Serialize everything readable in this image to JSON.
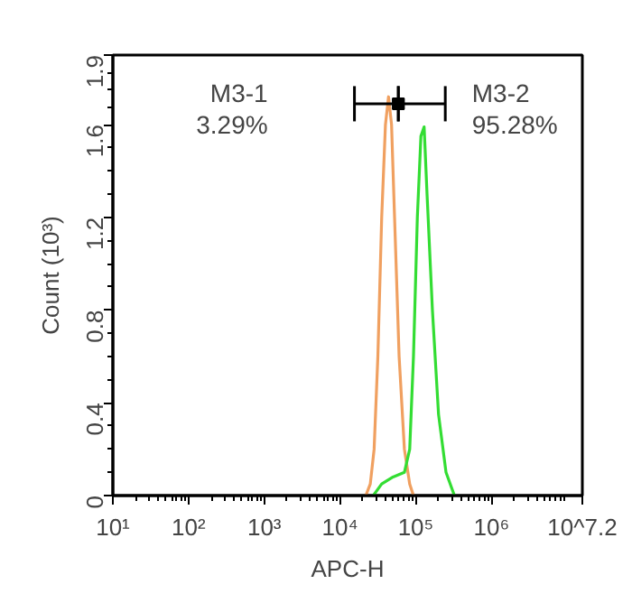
{
  "chart_data": {
    "type": "line",
    "xlabel": "APC-H",
    "ylabel": "Count (10³)",
    "log": "x",
    "xlim": [
      10,
      15848932
    ],
    "xticks": [
      {
        "value": 10,
        "label": "10¹"
      },
      {
        "value": 100,
        "label": "10²"
      },
      {
        "value": 1000,
        "label": "10³"
      },
      {
        "value": 10000,
        "label": "10⁴"
      },
      {
        "value": 100000,
        "label": "10⁵"
      },
      {
        "value": 1000000,
        "label": "10⁶"
      },
      {
        "value": 15848932,
        "label": "10^7.2"
      }
    ],
    "ylim": [
      0,
      1.9
    ],
    "yticks": [
      {
        "value": 0,
        "label": "0"
      },
      {
        "value": 0.4,
        "label": "0.4"
      },
      {
        "value": 0.8,
        "label": "0.8"
      },
      {
        "value": 1.2,
        "label": "1.2"
      },
      {
        "value": 1.6,
        "label": "1.6"
      },
      {
        "value": 1.9,
        "label": "1.9"
      }
    ],
    "grid": false,
    "marker": "none",
    "line_style": "solid",
    "series": [
      {
        "color": "#f0a060",
        "x": [
          21900,
          25100,
          28200,
          31600,
          35500,
          39800,
          43700,
          47900,
          52500,
          60300,
          70800,
          83200,
          93300
        ],
        "values": [
          0,
          0.05,
          0.2,
          0.6,
          1.2,
          1.6,
          1.72,
          1.6,
          1.2,
          0.6,
          0.2,
          0.05,
          0
        ]
      },
      {
        "color": "#33dd33",
        "x": [
          27500,
          35500,
          50100,
          70800,
          83200,
          93300,
          105000,
          117000,
          129000,
          141000,
          166000,
          200000,
          251000,
          324000
        ],
        "values": [
          0,
          0.05,
          0.08,
          0.1,
          0.2,
          0.6,
          1.2,
          1.55,
          1.59,
          1.3,
          0.8,
          0.35,
          0.1,
          0
        ]
      },
      {
        "type": "scatter",
        "color": "#000000",
        "marker": "square",
        "x": [
          58900,
          58900
        ],
        "values": [
          1.69,
          1.69
        ],
        "xerrors": [
          [
            15500,
            58900
          ],
          [
            58900,
            245500
          ]
        ]
      }
    ],
    "annotations": [
      "M3-1\n3.29%",
      "M3-2\n95.28%"
    ]
  }
}
